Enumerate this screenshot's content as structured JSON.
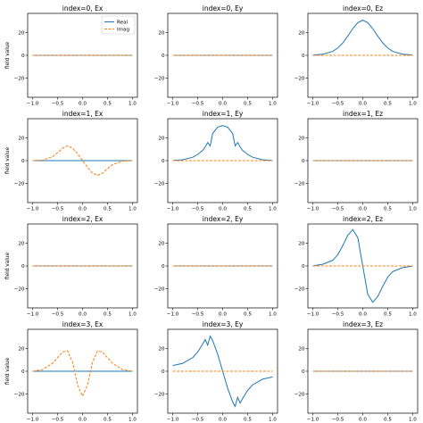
{
  "chart_data": [
    {
      "type": "line",
      "title": "index=0, Ex",
      "xlabel": "",
      "ylabel": "field value",
      "xlim": [
        -1.1,
        1.1
      ],
      "ylim": [
        -37,
        37
      ],
      "xticks": [
        -1.0,
        -0.5,
        0.0,
        0.5,
        1.0
      ],
      "yticks": [
        -20,
        0,
        20
      ],
      "legend": {
        "placement": "top-right",
        "entries": [
          "Real",
          "Imag"
        ]
      },
      "series": [
        {
          "name": "Real",
          "x": [
            -1.0,
            0.0,
            1.0
          ],
          "y": [
            0,
            0,
            0
          ]
        },
        {
          "name": "Imag",
          "x": [
            -1.0,
            0.0,
            1.0
          ],
          "y": [
            0,
            0,
            0
          ]
        }
      ]
    },
    {
      "type": "line",
      "title": "index=0, Ey",
      "xlabel": "",
      "ylabel": "",
      "xlim": [
        -1.1,
        1.1
      ],
      "ylim": [
        -37,
        37
      ],
      "xticks": [
        -1.0,
        -0.5,
        0.0,
        0.5,
        1.0
      ],
      "yticks": [
        -20,
        0,
        20
      ],
      "series": [
        {
          "name": "Real",
          "x": [
            -1.0,
            0.0,
            1.0
          ],
          "y": [
            0,
            0,
            0
          ]
        },
        {
          "name": "Imag",
          "x": [
            -1.0,
            0.0,
            1.0
          ],
          "y": [
            0,
            0,
            0
          ]
        }
      ]
    },
    {
      "type": "line",
      "title": "index=0, Ez",
      "xlabel": "",
      "ylabel": "",
      "xlim": [
        -1.1,
        1.1
      ],
      "ylim": [
        -37,
        37
      ],
      "xticks": [
        -1.0,
        -0.5,
        0.0,
        0.5,
        1.0
      ],
      "yticks": [
        -20,
        0,
        20
      ],
      "series": [
        {
          "name": "Real",
          "x": [
            -1.0,
            -0.8,
            -0.6,
            -0.5,
            -0.4,
            -0.3,
            -0.2,
            -0.1,
            0.0,
            0.1,
            0.2,
            0.3,
            0.4,
            0.5,
            0.6,
            0.8,
            1.0
          ],
          "y": [
            0.2,
            1.0,
            3.5,
            6.5,
            11,
            17,
            23.5,
            28.8,
            31,
            28.8,
            23.5,
            17,
            11,
            6.5,
            3.5,
            1.0,
            0.2
          ]
        },
        {
          "name": "Imag",
          "x": [
            -1.0,
            0.0,
            1.0
          ],
          "y": [
            0,
            0,
            0
          ]
        }
      ]
    },
    {
      "type": "line",
      "title": "index=1, Ex",
      "xlabel": "",
      "ylabel": "field value",
      "xlim": [
        -1.1,
        1.1
      ],
      "ylim": [
        -37,
        37
      ],
      "xticks": [
        -1.0,
        -0.5,
        0.0,
        0.5,
        1.0
      ],
      "yticks": [
        -20,
        0,
        20
      ],
      "series": [
        {
          "name": "Real",
          "x": [
            -1.0,
            0.0,
            1.0
          ],
          "y": [
            0,
            0,
            0
          ]
        },
        {
          "name": "Imag",
          "x": [
            -1.0,
            -0.8,
            -0.6,
            -0.5,
            -0.4,
            -0.3,
            -0.2,
            -0.1,
            0.0,
            0.1,
            0.2,
            0.3,
            0.4,
            0.5,
            0.6,
            0.8,
            1.0
          ],
          "y": [
            0,
            0.5,
            3.5,
            7,
            11,
            13,
            11,
            6,
            0,
            -6,
            -11,
            -13,
            -11,
            -7,
            -3.5,
            -0.5,
            0
          ]
        }
      ]
    },
    {
      "type": "line",
      "title": "index=1, Ey",
      "xlabel": "",
      "ylabel": "",
      "xlim": [
        -1.1,
        1.1
      ],
      "ylim": [
        -37,
        37
      ],
      "xticks": [
        -1.0,
        -0.5,
        0.0,
        0.5,
        1.0
      ],
      "yticks": [
        -20,
        0,
        20
      ],
      "series": [
        {
          "name": "Real",
          "x": [
            -1.0,
            -0.8,
            -0.6,
            -0.5,
            -0.4,
            -0.35,
            -0.3,
            -0.25,
            -0.2,
            -0.1,
            0.0,
            0.1,
            0.2,
            0.25,
            0.3,
            0.35,
            0.4,
            0.5,
            0.6,
            0.8,
            1.0
          ],
          "y": [
            0.1,
            0.8,
            3,
            5.5,
            9,
            12,
            16,
            13,
            24,
            29.5,
            31,
            29.5,
            24,
            13,
            16,
            12,
            9,
            5.5,
            3,
            0.8,
            0.1
          ]
        },
        {
          "name": "Imag",
          "x": [
            -1.0,
            0.0,
            1.0
          ],
          "y": [
            0,
            0,
            0
          ]
        }
      ]
    },
    {
      "type": "line",
      "title": "index=1, Ez",
      "xlabel": "",
      "ylabel": "",
      "xlim": [
        -1.1,
        1.1
      ],
      "ylim": [
        -37,
        37
      ],
      "xticks": [
        -1.0,
        -0.5,
        0.0,
        0.5,
        1.0
      ],
      "yticks": [
        -20,
        0,
        20
      ],
      "series": [
        {
          "name": "Real",
          "x": [
            -1.0,
            0.0,
            1.0
          ],
          "y": [
            0,
            0,
            0
          ]
        },
        {
          "name": "Imag",
          "x": [
            -1.0,
            0.0,
            1.0
          ],
          "y": [
            0,
            0,
            0
          ]
        }
      ]
    },
    {
      "type": "line",
      "title": "index=2, Ex",
      "xlabel": "",
      "ylabel": "field value",
      "xlim": [
        -1.1,
        1.1
      ],
      "ylim": [
        -37,
        37
      ],
      "xticks": [
        -1.0,
        -0.5,
        0.0,
        0.5,
        1.0
      ],
      "yticks": [
        -20,
        0,
        20
      ],
      "series": [
        {
          "name": "Real",
          "x": [
            -1.0,
            0.0,
            1.0
          ],
          "y": [
            0,
            0,
            0
          ]
        },
        {
          "name": "Imag",
          "x": [
            -1.0,
            0.0,
            1.0
          ],
          "y": [
            0,
            0,
            0
          ]
        }
      ]
    },
    {
      "type": "line",
      "title": "index=2, Ey",
      "xlabel": "",
      "ylabel": "",
      "xlim": [
        -1.1,
        1.1
      ],
      "ylim": [
        -37,
        37
      ],
      "xticks": [
        -1.0,
        -0.5,
        0.0,
        0.5,
        1.0
      ],
      "yticks": [
        -20,
        0,
        20
      ],
      "series": [
        {
          "name": "Real",
          "x": [
            -1.0,
            0.0,
            1.0
          ],
          "y": [
            0,
            0,
            0
          ]
        },
        {
          "name": "Imag",
          "x": [
            -1.0,
            0.0,
            1.0
          ],
          "y": [
            0,
            0,
            0
          ]
        }
      ]
    },
    {
      "type": "line",
      "title": "index=2, Ez",
      "xlabel": "",
      "ylabel": "",
      "xlim": [
        -1.1,
        1.1
      ],
      "ylim": [
        -37,
        37
      ],
      "xticks": [
        -1.0,
        -0.5,
        0.0,
        0.5,
        1.0
      ],
      "yticks": [
        -20,
        0,
        20
      ],
      "series": [
        {
          "name": "Real",
          "x": [
            -1.0,
            -0.8,
            -0.6,
            -0.5,
            -0.4,
            -0.3,
            -0.2,
            -0.1,
            0.0,
            0.1,
            0.2,
            0.3,
            0.4,
            0.5,
            0.6,
            0.8,
            1.0
          ],
          "y": [
            0.1,
            1.5,
            5,
            10,
            18,
            27,
            32,
            25,
            0,
            -25,
            -32,
            -27,
            -18,
            -10,
            -5,
            -1.5,
            -0.1
          ]
        },
        {
          "name": "Imag",
          "x": [
            -1.0,
            0.0,
            1.0
          ],
          "y": [
            0,
            0,
            0
          ]
        }
      ]
    },
    {
      "type": "line",
      "title": "index=3, Ex",
      "xlabel": "y position [um]",
      "ylabel": "field value",
      "xlim": [
        -1.1,
        1.1
      ],
      "ylim": [
        -37,
        37
      ],
      "xticks": [
        -1.0,
        -0.5,
        0.0,
        0.5,
        1.0
      ],
      "yticks": [
        -20,
        0,
        20
      ],
      "series": [
        {
          "name": "Real",
          "x": [
            -1.0,
            0.0,
            1.0
          ],
          "y": [
            0,
            0,
            0
          ]
        },
        {
          "name": "Imag",
          "x": [
            -1.0,
            -0.8,
            -0.6,
            -0.5,
            -0.4,
            -0.3,
            -0.2,
            -0.1,
            0.0,
            0.1,
            0.2,
            0.3,
            0.4,
            0.5,
            0.6,
            0.8,
            1.0
          ],
          "y": [
            0,
            1.5,
            7,
            12,
            17,
            18,
            8,
            -12,
            -22,
            -12,
            8,
            18,
            17,
            12,
            7,
            1.5,
            0
          ]
        }
      ]
    },
    {
      "type": "line",
      "title": "index=3, Ey",
      "xlabel": "y position [um]",
      "ylabel": "",
      "xlim": [
        -1.1,
        1.1
      ],
      "ylim": [
        -37,
        37
      ],
      "xticks": [
        -1.0,
        -0.5,
        0.0,
        0.5,
        1.0
      ],
      "yticks": [
        -20,
        0,
        20
      ],
      "series": [
        {
          "name": "Real",
          "x": [
            -1.0,
            -0.8,
            -0.6,
            -0.5,
            -0.4,
            -0.35,
            -0.3,
            -0.25,
            -0.2,
            -0.1,
            0.0,
            0.1,
            0.2,
            0.25,
            0.3,
            0.35,
            0.4,
            0.5,
            0.6,
            0.8,
            1.0
          ],
          "y": [
            5,
            7,
            12,
            17,
            24,
            28,
            23,
            31,
            27,
            15,
            0,
            -15,
            -27,
            -31,
            -23,
            -28,
            -24,
            -17,
            -12,
            -7,
            -5
          ]
        },
        {
          "name": "Imag",
          "x": [
            -1.0,
            0.0,
            1.0
          ],
          "y": [
            0,
            0,
            0
          ]
        }
      ]
    },
    {
      "type": "line",
      "title": "index=3, Ez",
      "xlabel": "y position [um]",
      "ylabel": "",
      "xlim": [
        -1.1,
        1.1
      ],
      "ylim": [
        -37,
        37
      ],
      "xticks": [
        -1.0,
        -0.5,
        0.0,
        0.5,
        1.0
      ],
      "yticks": [
        -20,
        0,
        20
      ],
      "series": [
        {
          "name": "Real",
          "x": [
            -1.0,
            0.0,
            1.0
          ],
          "y": [
            0,
            0,
            0
          ]
        },
        {
          "name": "Imag",
          "x": [
            -1.0,
            0.0,
            1.0
          ],
          "y": [
            0,
            0,
            0
          ]
        }
      ]
    }
  ],
  "colors": {
    "real": "#1f77b4",
    "imag": "#ff7f0e",
    "axes": "#000000"
  }
}
